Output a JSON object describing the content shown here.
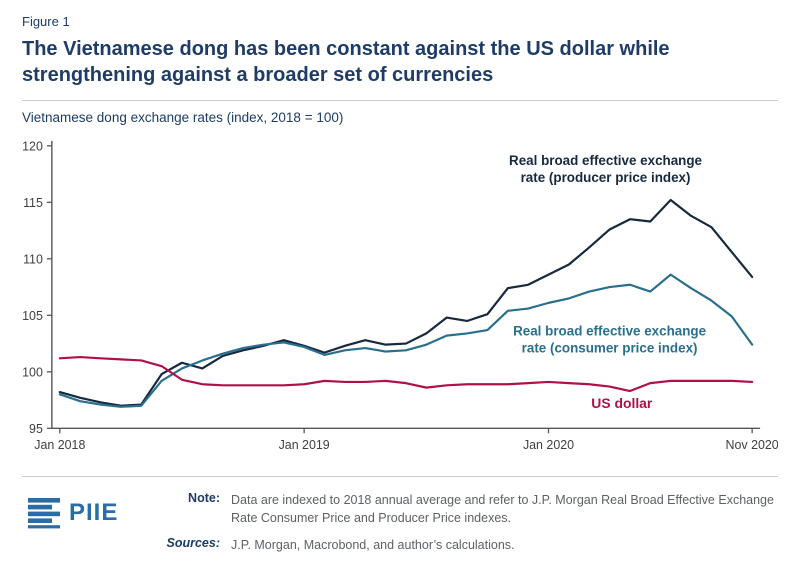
{
  "figure_label": "Figure 1",
  "title": "The Vietnamese dong has been constant against the US dollar while strengthening against a broader set of currencies",
  "subtitle": "Vietnamese dong exchange rates (index, 2018 = 100)",
  "colors": {
    "navy": "#1e3c66",
    "ppi_line": "#16293f",
    "cpi_line": "#2a6f8e",
    "usd_line": "#b0104a",
    "axis": "#55565a",
    "tick_text": "#414042",
    "note_text": "#5d6166",
    "logo_blue": "#2a6ca5",
    "divider": "#c9cbce"
  },
  "chart_data": {
    "type": "line",
    "title": "Vietnamese dong exchange rates (index, 2018 = 100)",
    "x_unit": "month",
    "x_start": "2018-01",
    "x_end": "2020-11",
    "x_tick_labels": [
      "Jan 2018",
      "Jan 2019",
      "Jan 2020",
      "Nov 2020"
    ],
    "x_tick_positions": [
      0,
      12,
      24,
      34
    ],
    "ylim": [
      95,
      120
    ],
    "y_ticks": [
      95,
      100,
      105,
      110,
      115,
      120
    ],
    "grid": false,
    "legend_position": "inline-annotations",
    "series": [
      {
        "name": "Real broad effective exchange rate (producer price index)",
        "color_key": "ppi_line",
        "values": [
          98.2,
          97.7,
          97.3,
          97.0,
          97.1,
          99.8,
          100.8,
          100.3,
          101.4,
          101.9,
          102.3,
          102.8,
          102.3,
          101.7,
          102.3,
          102.8,
          102.4,
          102.5,
          103.4,
          104.8,
          104.5,
          105.1,
          107.4,
          107.7,
          108.6,
          109.5,
          111.0,
          112.6,
          113.5,
          113.3,
          115.2,
          113.8,
          112.8,
          110.6,
          108.4
        ]
      },
      {
        "name": "Real broad effective exchange rate (consumer price index)",
        "color_key": "cpi_line",
        "values": [
          98.0,
          97.4,
          97.1,
          96.9,
          97.0,
          99.2,
          100.3,
          101.0,
          101.6,
          102.1,
          102.4,
          102.6,
          102.2,
          101.5,
          101.9,
          102.1,
          101.8,
          101.9,
          102.4,
          103.2,
          103.4,
          103.7,
          105.4,
          105.6,
          106.1,
          106.5,
          107.1,
          107.5,
          107.7,
          107.1,
          108.6,
          107.4,
          106.3,
          104.9,
          102.4
        ]
      },
      {
        "name": "US dollar",
        "color_key": "usd_line",
        "values": [
          101.2,
          101.3,
          101.2,
          101.1,
          101.0,
          100.5,
          99.3,
          98.9,
          98.8,
          98.8,
          98.8,
          98.8,
          98.9,
          99.2,
          99.1,
          99.1,
          99.2,
          99.0,
          98.6,
          98.8,
          98.9,
          98.9,
          98.9,
          99.0,
          99.1,
          99.0,
          98.9,
          98.7,
          98.3,
          99.0,
          99.2,
          99.2,
          99.2,
          99.2,
          99.1
        ]
      }
    ],
    "annotations": [
      {
        "id": "ppi-label",
        "lines": [
          "Real broad effective exchange",
          "rate (producer price index)"
        ],
        "x_month": 26.8,
        "y_value": 118.3,
        "color_key": "ppi_line",
        "font_size": 13.5
      },
      {
        "id": "cpi-label",
        "lines": [
          "Real broad effective exchange",
          "rate (consumer price index)"
        ],
        "x_month": 27.0,
        "y_value": 103.2,
        "color_key": "cpi_line",
        "font_size": 13.5
      },
      {
        "id": "usd-label",
        "lines": [
          "US dollar"
        ],
        "x_month": 27.6,
        "y_value": 96.8,
        "color_key": "usd_line",
        "font_size": 14
      }
    ]
  },
  "footer": {
    "logo_text": "PIIE",
    "note_label": "Note:",
    "note_text": "Data are indexed to 2018 annual average and refer to J.P. Morgan Real Broad Effective Exchange Rate Consumer Price and Producer Price indexes.",
    "sources_label": "Sources:",
    "sources_text": "J.P. Morgan, Macrobond, and author’s calculations."
  }
}
